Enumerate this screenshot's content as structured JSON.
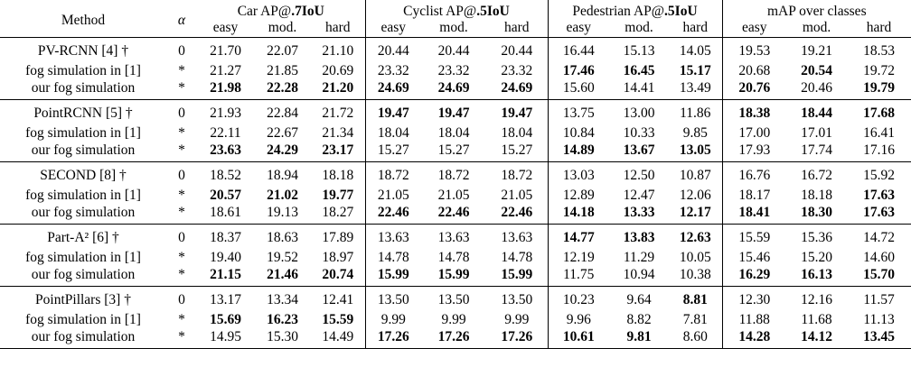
{
  "header": {
    "method": "Method",
    "alpha": "α",
    "groups": [
      {
        "prefix": "Car AP@",
        "bold": ".7IoU"
      },
      {
        "prefix": "Cyclist AP@",
        "bold": ".5IoU"
      },
      {
        "prefix": "Pedestrian AP@",
        "bold": ".5IoU"
      },
      {
        "prefix": "mAP over classes",
        "bold": ""
      }
    ],
    "sub": [
      "easy",
      "mod.",
      "hard"
    ]
  },
  "blocks": [
    {
      "rows": [
        {
          "method": "PV-RCNN [4] †",
          "alpha": "0",
          "cells": [
            [
              "21.70",
              0
            ],
            [
              "22.07",
              0
            ],
            [
              "21.10",
              0
            ],
            [
              "20.44",
              0
            ],
            [
              "20.44",
              0
            ],
            [
              "20.44",
              0
            ],
            [
              "16.44",
              0
            ],
            [
              "15.13",
              0
            ],
            [
              "14.05",
              0
            ],
            [
              "19.53",
              0
            ],
            [
              "19.21",
              0
            ],
            [
              "18.53",
              0
            ]
          ]
        },
        {
          "method": "fog simulation in [1]",
          "alpha": "*",
          "cells": [
            [
              "21.27",
              0
            ],
            [
              "21.85",
              0
            ],
            [
              "20.69",
              0
            ],
            [
              "23.32",
              0
            ],
            [
              "23.32",
              0
            ],
            [
              "23.32",
              0
            ],
            [
              "17.46",
              1
            ],
            [
              "16.45",
              1
            ],
            [
              "15.17",
              1
            ],
            [
              "20.68",
              0
            ],
            [
              "20.54",
              1
            ],
            [
              "19.72",
              0
            ]
          ]
        },
        {
          "method": "our fog simulation",
          "alpha": "*",
          "cells": [
            [
              "21.98",
              1
            ],
            [
              "22.28",
              1
            ],
            [
              "21.20",
              1
            ],
            [
              "24.69",
              1
            ],
            [
              "24.69",
              1
            ],
            [
              "24.69",
              1
            ],
            [
              "15.60",
              0
            ],
            [
              "14.41",
              0
            ],
            [
              "13.49",
              0
            ],
            [
              "20.76",
              1
            ],
            [
              "20.46",
              0
            ],
            [
              "19.79",
              1
            ]
          ]
        }
      ]
    },
    {
      "rows": [
        {
          "method": "PointRCNN [5] †",
          "alpha": "0",
          "cells": [
            [
              "21.93",
              0
            ],
            [
              "22.84",
              0
            ],
            [
              "21.72",
              0
            ],
            [
              "19.47",
              1
            ],
            [
              "19.47",
              1
            ],
            [
              "19.47",
              1
            ],
            [
              "13.75",
              0
            ],
            [
              "13.00",
              0
            ],
            [
              "11.86",
              0
            ],
            [
              "18.38",
              1
            ],
            [
              "18.44",
              1
            ],
            [
              "17.68",
              1
            ]
          ]
        },
        {
          "method": "fog simulation in [1]",
          "alpha": "*",
          "cells": [
            [
              "22.11",
              0
            ],
            [
              "22.67",
              0
            ],
            [
              "21.34",
              0
            ],
            [
              "18.04",
              0
            ],
            [
              "18.04",
              0
            ],
            [
              "18.04",
              0
            ],
            [
              "10.84",
              0
            ],
            [
              "10.33",
              0
            ],
            [
              "9.85",
              0
            ],
            [
              "17.00",
              0
            ],
            [
              "17.01",
              0
            ],
            [
              "16.41",
              0
            ]
          ]
        },
        {
          "method": "our fog simulation",
          "alpha": "*",
          "cells": [
            [
              "23.63",
              1
            ],
            [
              "24.29",
              1
            ],
            [
              "23.17",
              1
            ],
            [
              "15.27",
              0
            ],
            [
              "15.27",
              0
            ],
            [
              "15.27",
              0
            ],
            [
              "14.89",
              1
            ],
            [
              "13.67",
              1
            ],
            [
              "13.05",
              1
            ],
            [
              "17.93",
              0
            ],
            [
              "17.74",
              0
            ],
            [
              "17.16",
              0
            ]
          ]
        }
      ]
    },
    {
      "rows": [
        {
          "method": "SECOND [8] †",
          "alpha": "0",
          "cells": [
            [
              "18.52",
              0
            ],
            [
              "18.94",
              0
            ],
            [
              "18.18",
              0
            ],
            [
              "18.72",
              0
            ],
            [
              "18.72",
              0
            ],
            [
              "18.72",
              0
            ],
            [
              "13.03",
              0
            ],
            [
              "12.50",
              0
            ],
            [
              "10.87",
              0
            ],
            [
              "16.76",
              0
            ],
            [
              "16.72",
              0
            ],
            [
              "15.92",
              0
            ]
          ]
        },
        {
          "method": "fog simulation in [1]",
          "alpha": "*",
          "cells": [
            [
              "20.57",
              1
            ],
            [
              "21.02",
              1
            ],
            [
              "19.77",
              1
            ],
            [
              "21.05",
              0
            ],
            [
              "21.05",
              0
            ],
            [
              "21.05",
              0
            ],
            [
              "12.89",
              0
            ],
            [
              "12.47",
              0
            ],
            [
              "12.06",
              0
            ],
            [
              "18.17",
              0
            ],
            [
              "18.18",
              0
            ],
            [
              "17.63",
              1
            ]
          ]
        },
        {
          "method": "our fog simulation",
          "alpha": "*",
          "cells": [
            [
              "18.61",
              0
            ],
            [
              "19.13",
              0
            ],
            [
              "18.27",
              0
            ],
            [
              "22.46",
              1
            ],
            [
              "22.46",
              1
            ],
            [
              "22.46",
              1
            ],
            [
              "14.18",
              1
            ],
            [
              "13.33",
              1
            ],
            [
              "12.17",
              1
            ],
            [
              "18.41",
              1
            ],
            [
              "18.30",
              1
            ],
            [
              "17.63",
              1
            ]
          ]
        }
      ]
    },
    {
      "rows": [
        {
          "method": "Part-A² [6] †",
          "alpha": "0",
          "cells": [
            [
              "18.37",
              0
            ],
            [
              "18.63",
              0
            ],
            [
              "17.89",
              0
            ],
            [
              "13.63",
              0
            ],
            [
              "13.63",
              0
            ],
            [
              "13.63",
              0
            ],
            [
              "14.77",
              1
            ],
            [
              "13.83",
              1
            ],
            [
              "12.63",
              1
            ],
            [
              "15.59",
              0
            ],
            [
              "15.36",
              0
            ],
            [
              "14.72",
              0
            ]
          ]
        },
        {
          "method": "fog simulation in [1]",
          "alpha": "*",
          "cells": [
            [
              "19.40",
              0
            ],
            [
              "19.52",
              0
            ],
            [
              "18.97",
              0
            ],
            [
              "14.78",
              0
            ],
            [
              "14.78",
              0
            ],
            [
              "14.78",
              0
            ],
            [
              "12.19",
              0
            ],
            [
              "11.29",
              0
            ],
            [
              "10.05",
              0
            ],
            [
              "15.46",
              0
            ],
            [
              "15.20",
              0
            ],
            [
              "14.60",
              0
            ]
          ]
        },
        {
          "method": "our fog simulation",
          "alpha": "*",
          "cells": [
            [
              "21.15",
              1
            ],
            [
              "21.46",
              1
            ],
            [
              "20.74",
              1
            ],
            [
              "15.99",
              1
            ],
            [
              "15.99",
              1
            ],
            [
              "15.99",
              1
            ],
            [
              "11.75",
              0
            ],
            [
              "10.94",
              0
            ],
            [
              "10.38",
              0
            ],
            [
              "16.29",
              1
            ],
            [
              "16.13",
              1
            ],
            [
              "15.70",
              1
            ]
          ]
        }
      ]
    },
    {
      "rows": [
        {
          "method": "PointPillars [3] †",
          "alpha": "0",
          "cells": [
            [
              "13.17",
              0
            ],
            [
              "13.34",
              0
            ],
            [
              "12.41",
              0
            ],
            [
              "13.50",
              0
            ],
            [
              "13.50",
              0
            ],
            [
              "13.50",
              0
            ],
            [
              "10.23",
              0
            ],
            [
              "9.64",
              0
            ],
            [
              "8.81",
              1
            ],
            [
              "12.30",
              0
            ],
            [
              "12.16",
              0
            ],
            [
              "11.57",
              0
            ]
          ]
        },
        {
          "method": "fog simulation in [1]",
          "alpha": "*",
          "cells": [
            [
              "15.69",
              1
            ],
            [
              "16.23",
              1
            ],
            [
              "15.59",
              1
            ],
            [
              "9.99",
              0
            ],
            [
              "9.99",
              0
            ],
            [
              "9.99",
              0
            ],
            [
              "9.96",
              0
            ],
            [
              "8.82",
              0
            ],
            [
              "7.81",
              0
            ],
            [
              "11.88",
              0
            ],
            [
              "11.68",
              0
            ],
            [
              "11.13",
              0
            ]
          ]
        },
        {
          "method": "our fog simulation",
          "alpha": "*",
          "cells": [
            [
              "14.95",
              0
            ],
            [
              "15.30",
              0
            ],
            [
              "14.49",
              0
            ],
            [
              "17.26",
              1
            ],
            [
              "17.26",
              1
            ],
            [
              "17.26",
              1
            ],
            [
              "10.61",
              1
            ],
            [
              "9.81",
              1
            ],
            [
              "8.60",
              0
            ],
            [
              "14.28",
              1
            ],
            [
              "14.12",
              1
            ],
            [
              "13.45",
              1
            ]
          ]
        }
      ]
    }
  ]
}
